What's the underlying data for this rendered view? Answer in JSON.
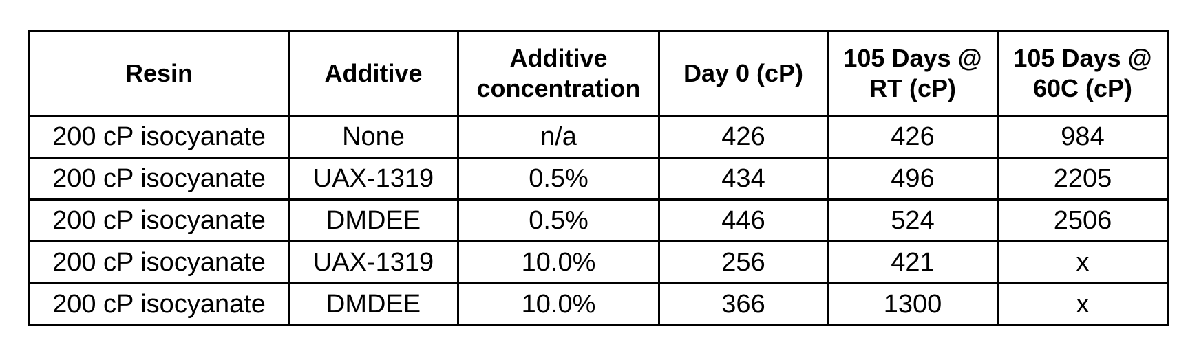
{
  "table": {
    "headers": [
      {
        "key": "resin",
        "lines": [
          "Resin"
        ]
      },
      {
        "key": "additive",
        "lines": [
          "Additive"
        ]
      },
      {
        "key": "additive-concentration",
        "lines": [
          "Additive",
          "concentration"
        ]
      },
      {
        "key": "day0",
        "lines": [
          "Day 0 (cP)"
        ]
      },
      {
        "key": "rt-105",
        "lines": [
          "105 Days @",
          "RT (cP)"
        ]
      },
      {
        "key": "60c-105",
        "lines": [
          "105 Days @",
          "60C (cP)"
        ]
      }
    ],
    "rows": [
      [
        "200 cP isocyanate",
        "None",
        "n/a",
        "426",
        "426",
        "984"
      ],
      [
        "200 cP isocyanate",
        "UAX-1319",
        "0.5%",
        "434",
        "496",
        "2205"
      ],
      [
        "200 cP isocyanate",
        "DMDEE",
        "0.5%",
        "446",
        "524",
        "2506"
      ],
      [
        "200 cP isocyanate",
        "UAX-1319",
        "10.0%",
        "256",
        "421",
        "x"
      ],
      [
        "200 cP isocyanate",
        "DMDEE",
        "10.0%",
        "366",
        "1300",
        "x"
      ]
    ]
  }
}
